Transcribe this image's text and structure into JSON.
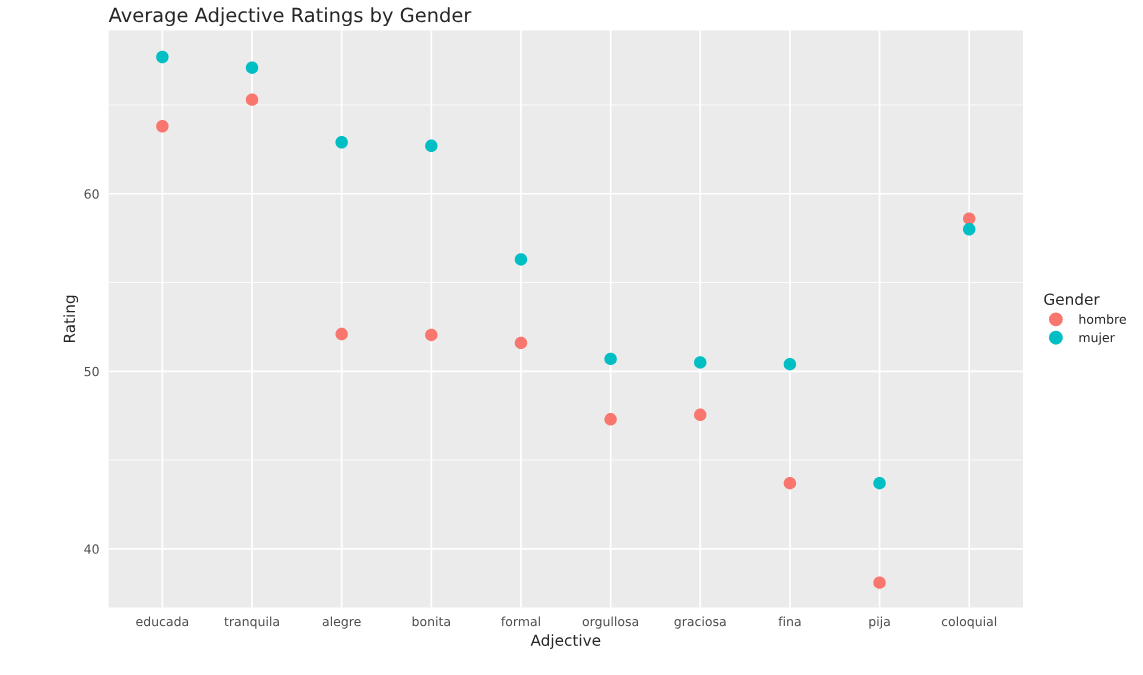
{
  "chart_data": {
    "type": "scatter",
    "title": "Average Adjective Ratings by Gender",
    "xlabel": "Adjective",
    "ylabel": "Rating",
    "legend_title": "Gender",
    "categories": [
      "educada",
      "tranquila",
      "alegre",
      "bonita",
      "formal",
      "orgullosa",
      "graciosa",
      "fina",
      "pija",
      "coloquial"
    ],
    "series": [
      {
        "name": "hombre",
        "color": "#f8766d",
        "values": [
          63.8,
          65.3,
          52.1,
          52.05,
          51.6,
          47.3,
          47.55,
          43.7,
          38.1,
          58.6
        ]
      },
      {
        "name": "mujer",
        "color": "#00bfc4",
        "values": [
          67.7,
          67.1,
          62.9,
          62.7,
          56.3,
          50.7,
          50.5,
          50.4,
          43.7,
          58.0
        ]
      }
    ],
    "ylim": [
      36.7,
      69.2
    ],
    "yticks": [
      40,
      50,
      60
    ],
    "grid": true,
    "legend": "right",
    "marker": "circle"
  }
}
